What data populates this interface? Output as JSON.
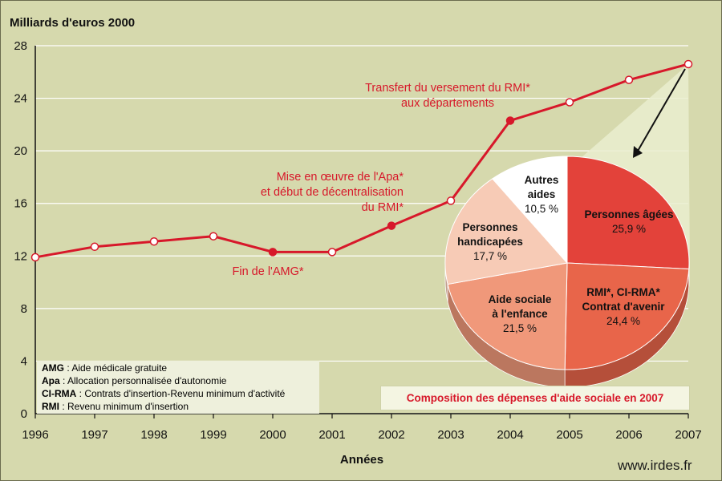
{
  "chart_data": [
    {
      "type": "line",
      "ylabel": "Milliards d'euros 2000",
      "xlabel": "Années",
      "ylim": [
        0,
        28
      ],
      "yticks": [
        0,
        4,
        8,
        12,
        16,
        20,
        24,
        28
      ],
      "x": [
        "1996",
        "1997",
        "1998",
        "1999",
        "2000",
        "2001",
        "2002",
        "2003",
        "2004",
        "2005",
        "2006",
        "2007"
      ],
      "values": [
        11.9,
        12.7,
        13.1,
        13.5,
        12.3,
        12.3,
        14.3,
        16.2,
        22.3,
        23.7,
        25.4,
        26.6
      ],
      "highlighted_points": [
        "2000",
        "2002",
        "2004"
      ],
      "line_color": "#d7182a",
      "annotations": [
        {
          "lines": [
            "Fin de l'AMG*"
          ],
          "x": "2000"
        },
        {
          "lines": [
            "Mise en œuvre de l'Apa*",
            "et début de décentralisation",
            "du RMI*"
          ],
          "x": "2002"
        },
        {
          "lines": [
            "Transfert du versement du RMI*",
            "aux départements"
          ],
          "x": "2004"
        }
      ]
    },
    {
      "type": "pie",
      "title": "Composition des dépenses d'aide sociale en 2007",
      "slices": [
        {
          "lines": [
            "Personnes âgées"
          ],
          "value": 25.9,
          "pct": "25,9 %",
          "color": "#e3423a"
        },
        {
          "lines": [
            "RMI*, CI-RMA*",
            "Contrat d'avenir"
          ],
          "value": 24.4,
          "pct": "24,4 %",
          "color": "#e8654a"
        },
        {
          "lines": [
            "Aide sociale",
            "à l'enfance"
          ],
          "value": 21.5,
          "pct": "21,5 %",
          "color": "#f0987a"
        },
        {
          "lines": [
            "Personnes",
            "handicapées"
          ],
          "value": 17.7,
          "pct": "17,7 %",
          "color": "#f7cbb6"
        },
        {
          "lines": [
            "Autres",
            "aides"
          ],
          "value": 10.5,
          "pct": "10,5 %",
          "color": "#ffffff"
        }
      ]
    }
  ],
  "legend": [
    {
      "abbr": "AMG",
      "text": " : Aide médicale gratuite"
    },
    {
      "abbr": "Apa",
      "text": " : Allocation personnalisée d'autonomie"
    },
    {
      "abbr": "CI-RMA",
      "text": " : Contrats d'insertion-Revenu minimum d'activité"
    },
    {
      "abbr": "RMI",
      "text": " : Revenu minimum d'insertion"
    }
  ],
  "source": "www.irdes.fr"
}
